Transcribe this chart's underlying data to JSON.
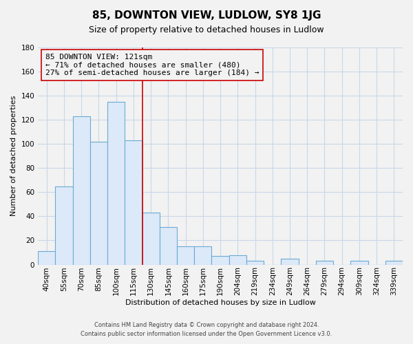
{
  "title": "85, DOWNTON VIEW, LUDLOW, SY8 1JG",
  "subtitle": "Size of property relative to detached houses in Ludlow",
  "xlabel": "Distribution of detached houses by size in Ludlow",
  "ylabel": "Number of detached properties",
  "bar_labels": [
    "40sqm",
    "55sqm",
    "70sqm",
    "85sqm",
    "100sqm",
    "115sqm",
    "130sqm",
    "145sqm",
    "160sqm",
    "175sqm",
    "190sqm",
    "204sqm",
    "219sqm",
    "234sqm",
    "249sqm",
    "264sqm",
    "279sqm",
    "294sqm",
    "309sqm",
    "324sqm",
    "339sqm"
  ],
  "bar_heights": [
    11,
    65,
    123,
    102,
    135,
    103,
    43,
    31,
    15,
    15,
    7,
    8,
    3,
    0,
    5,
    0,
    3,
    0,
    3,
    0,
    3
  ],
  "bar_color": "#dce9f8",
  "bar_edge_color": "#6aaad4",
  "vline_x": 5.5,
  "vline_color": "#cc0000",
  "annotation_line1": "85 DOWNTON VIEW: 121sqm",
  "annotation_line2": "← 71% of detached houses are smaller (480)",
  "annotation_line3": "27% of semi-detached houses are larger (184) →",
  "annotation_box_edge": "#cc0000",
  "ylim": [
    0,
    180
  ],
  "yticks": [
    0,
    20,
    40,
    60,
    80,
    100,
    120,
    140,
    160,
    180
  ],
  "footer_line1": "Contains HM Land Registry data © Crown copyright and database right 2024.",
  "footer_line2": "Contains public sector information licensed under the Open Government Licence v3.0.",
  "bg_color": "#f2f2f2",
  "grid_color": "#c8d8e8",
  "title_fontsize": 11,
  "subtitle_fontsize": 9,
  "annotation_fontsize": 8,
  "axis_label_fontsize": 8,
  "tick_fontsize": 7.5,
  "footer_fontsize": 6
}
